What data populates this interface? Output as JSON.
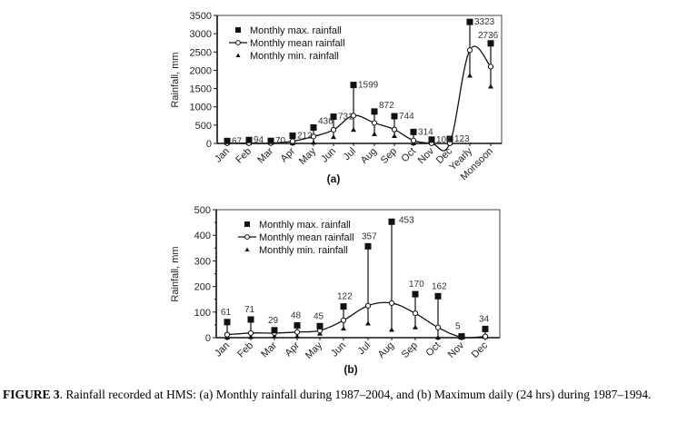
{
  "figure": {
    "caption_label": "FIGURE 3",
    "caption_text": ". Rainfall recorded at HMS: (a) Monthly rainfall during 1987–2004, and (b) Maximum daily (24 hrs) during 1987–1994."
  },
  "chart_data": [
    {
      "id": "a",
      "type": "line",
      "panel_label": "(a)",
      "title": "",
      "xlabel": "",
      "ylabel": "Rainfall, mm",
      "ylim": [
        0,
        3500
      ],
      "yticks": [
        0,
        500,
        1000,
        1500,
        2000,
        2500,
        3000,
        3500
      ],
      "categories": [
        "Jan",
        "Feb",
        "Mar",
        "Apr",
        "May",
        "Jun",
        "Jul",
        "Aug",
        "Sep",
        "Oct",
        "Nov",
        "Dec",
        "Yearly",
        "Monsoon"
      ],
      "legend": {
        "position": "top-left",
        "entries": [
          "Monthly max. rainfall",
          "Monthly mean rainfall",
          "Monthly min. rainfall"
        ]
      },
      "grid": false,
      "series": [
        {
          "name": "Monthly max. rainfall",
          "marker": "square",
          "values": [
            67,
            94,
            70,
            212,
            436,
            731,
            1599,
            872,
            744,
            314,
            104,
            123,
            3323,
            2736
          ]
        },
        {
          "name": "Monthly mean rainfall",
          "marker": "circle-line",
          "values": [
            5,
            8,
            10,
            60,
            190,
            370,
            760,
            560,
            380,
            80,
            5,
            5,
            2550,
            2100
          ]
        },
        {
          "name": "Monthly min. rainfall",
          "marker": "triangle",
          "values": [
            0,
            0,
            0,
            0,
            20,
            170,
            370,
            250,
            200,
            0,
            0,
            0,
            1850,
            1550
          ]
        }
      ],
      "data_labels": [
        "67",
        "94",
        "70",
        "212",
        "436",
        "731",
        "1599",
        "872",
        "744",
        "314",
        "104",
        "123",
        "3323",
        "2736"
      ]
    },
    {
      "id": "b",
      "type": "line",
      "panel_label": "(b)",
      "title": "",
      "xlabel": "",
      "ylabel": "Rainfall, mm",
      "ylim": [
        0,
        500
      ],
      "yticks": [
        0,
        100,
        200,
        300,
        400,
        500
      ],
      "categories": [
        "Jan",
        "Feb",
        "Mar",
        "Apr",
        "May",
        "Jun",
        "Jul",
        "Aug",
        "Sep",
        "Oct",
        "Nov",
        "Dec"
      ],
      "legend": {
        "position": "top-left",
        "entries": [
          "Monthly max. rainfall",
          "Monthly mean rainfall",
          "Monthly min. rainfall"
        ]
      },
      "grid": false,
      "series": [
        {
          "name": "Monthly max. rainfall",
          "marker": "square",
          "values": [
            61,
            71,
            29,
            48,
            45,
            122,
            357,
            453,
            170,
            162,
            5,
            34
          ]
        },
        {
          "name": "Monthly mean rainfall",
          "marker": "circle-line",
          "values": [
            12,
            18,
            18,
            22,
            28,
            68,
            125,
            135,
            95,
            40,
            2,
            5
          ]
        },
        {
          "name": "Monthly min. rainfall",
          "marker": "triangle",
          "values": [
            0,
            2,
            5,
            5,
            15,
            35,
            55,
            30,
            40,
            0,
            0,
            2
          ]
        }
      ],
      "data_labels": [
        "61",
        "71",
        "29",
        "48",
        "45",
        "122",
        "357",
        "453",
        "170",
        "162",
        "5",
        "34"
      ]
    }
  ]
}
